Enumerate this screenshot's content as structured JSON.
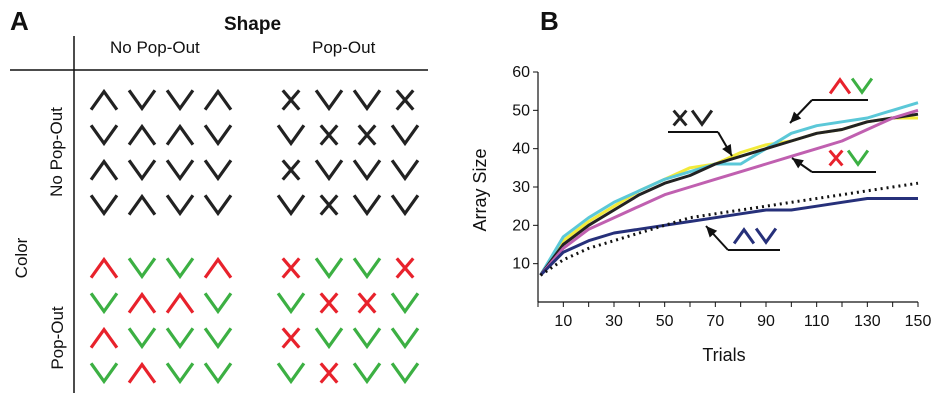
{
  "panel_a": {
    "letter": "A",
    "shape_header": "Shape",
    "col_no_popout": "No Pop-Out",
    "col_popout": "Pop-Out",
    "color_label": "Color",
    "row_no_popout": "No Pop-Out",
    "row_popout": "Pop-Out",
    "colors": {
      "black": "#222222",
      "red": "#e8222c",
      "green": "#3cb043"
    },
    "quadrants": {
      "top_left": [
        [
          "up",
          "down",
          "down",
          "up"
        ],
        [
          "down",
          "up",
          "up",
          "down"
        ],
        [
          "up",
          "down",
          "down",
          "down"
        ],
        [
          "down",
          "up",
          "down",
          "down"
        ]
      ],
      "top_right": [
        [
          "x",
          "down",
          "down",
          "x"
        ],
        [
          "down",
          "x",
          "x",
          "down"
        ],
        [
          "x",
          "down",
          "down",
          "down"
        ],
        [
          "down",
          "x",
          "down",
          "down"
        ]
      ],
      "bottom_left": [
        [
          "up:red",
          "down:green",
          "down:green",
          "up:red"
        ],
        [
          "down:green",
          "up:red",
          "up:red",
          "down:green"
        ],
        [
          "up:red",
          "down:green",
          "down:green",
          "down:green"
        ],
        [
          "down:green",
          "up:red",
          "down:green",
          "down:green"
        ]
      ],
      "bottom_right": [
        [
          "x:red",
          "down:green",
          "down:green",
          "x:red"
        ],
        [
          "down:green",
          "x:red",
          "x:red",
          "down:green"
        ],
        [
          "x:red",
          "down:green",
          "down:green",
          "down:green"
        ],
        [
          "down:green",
          "x:red",
          "down:green",
          "down:green"
        ]
      ]
    }
  },
  "panel_b": {
    "letter": "B"
  },
  "chart_data": {
    "type": "line",
    "xlabel": "Trials",
    "ylabel": "Array Size",
    "xlim": [
      0,
      150
    ],
    "ylim": [
      0,
      60
    ],
    "x_ticks": [
      10,
      30,
      50,
      70,
      90,
      110,
      130,
      150
    ],
    "y_ticks": [
      10,
      20,
      30,
      40,
      50,
      60
    ],
    "x": [
      1,
      10,
      20,
      30,
      40,
      50,
      60,
      70,
      80,
      90,
      100,
      110,
      120,
      130,
      140,
      150
    ],
    "series": [
      {
        "color": "#f2ea3a",
        "style": "solid",
        "values": [
          7,
          16,
          21,
          25,
          29,
          32,
          35,
          36,
          39,
          41,
          42,
          44,
          45,
          47,
          48,
          48
        ]
      },
      {
        "color": "#5bc8d8",
        "style": "solid",
        "values": [
          7,
          17,
          22,
          26,
          29,
          32,
          34,
          36,
          36,
          40,
          44,
          46,
          47,
          48,
          50,
          52
        ]
      },
      {
        "color": "#222222",
        "style": "solid",
        "values": [
          7,
          15,
          20,
          24,
          28,
          31,
          33,
          36,
          38,
          40,
          42,
          44,
          45,
          47,
          48,
          49
        ]
      },
      {
        "color": "#c060b0",
        "style": "solid",
        "values": [
          7,
          14,
          19,
          22,
          25,
          28,
          30,
          32,
          34,
          36,
          38,
          40,
          42,
          45,
          48,
          50
        ]
      },
      {
        "color": "#26307a",
        "style": "solid",
        "values": [
          7,
          13,
          16,
          18,
          19,
          20,
          21,
          22,
          23,
          24,
          24,
          25,
          26,
          27,
          27,
          27
        ]
      },
      {
        "color": "#111111",
        "style": "dotted",
        "values": [
          7,
          11,
          14,
          16,
          18,
          20,
          22,
          23,
          24,
          25,
          26,
          27,
          28,
          29,
          30,
          31
        ]
      }
    ],
    "annotations": [
      {
        "glyphs": [
          [
            "up",
            "#e8222c"
          ],
          [
            "down",
            "#3cb043"
          ]
        ]
      },
      {
        "glyphs": [
          [
            "x",
            "#222222"
          ],
          [
            "down",
            "#222222"
          ]
        ]
      },
      {
        "glyphs": [
          [
            "x",
            "#e8222c"
          ],
          [
            "down",
            "#3cb043"
          ]
        ]
      },
      {
        "glyphs": [
          [
            "up",
            "#26307a"
          ],
          [
            "down",
            "#26307a"
          ]
        ]
      }
    ]
  }
}
